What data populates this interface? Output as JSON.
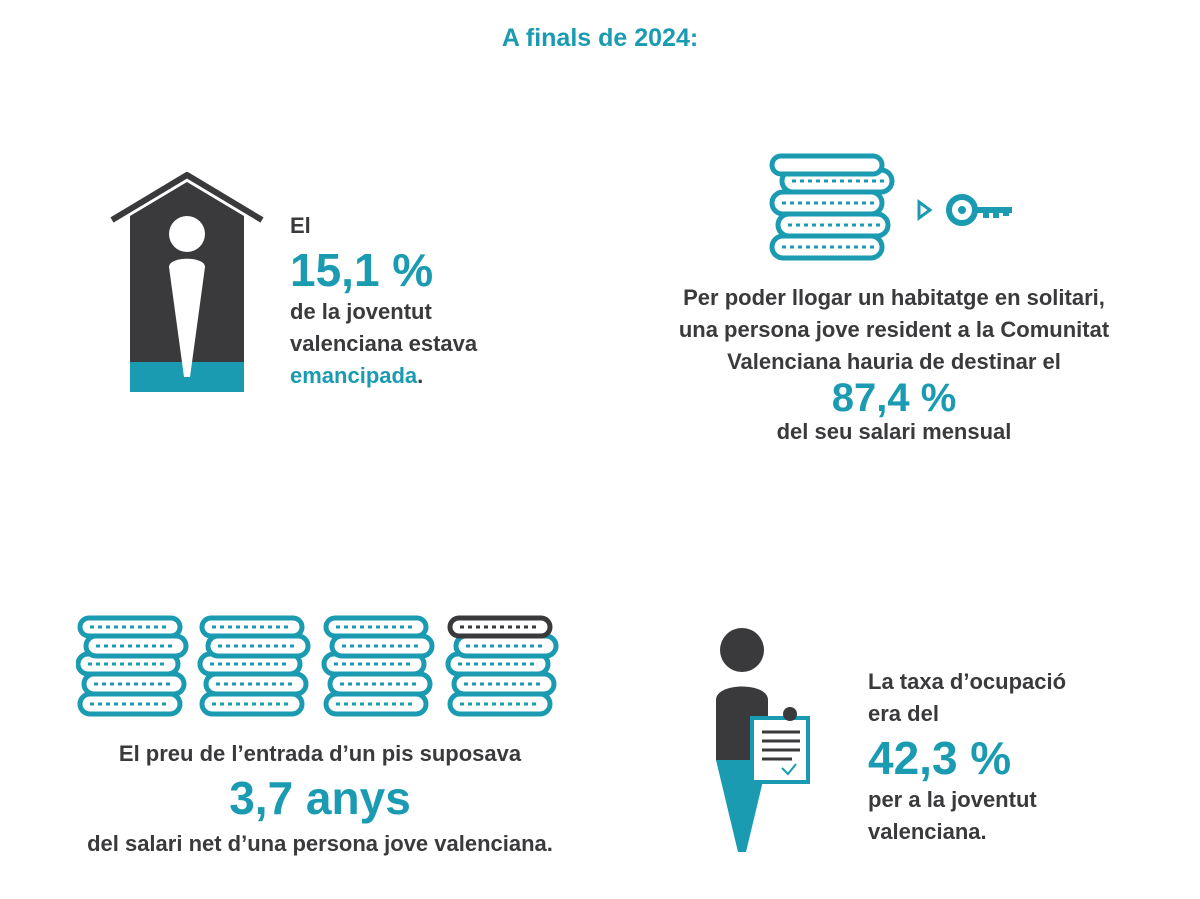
{
  "title": "A finals de 2024:",
  "emancipation": {
    "prefix": "El",
    "value": "15,1 %",
    "line1": "de la joventut",
    "line2": "valenciana estava",
    "highlight": "emancipada",
    "suffix": "."
  },
  "rent": {
    "line1": "Per poder llogar un habitatge en solitari,",
    "line2": "una persona jove resident a la Comunitat",
    "line3": "Valenciana hauria de destinar el",
    "value": "87,4 %",
    "line4": "del seu salari mensual"
  },
  "purchase": {
    "line1": "El preu de l’entrada d’un pis suposava",
    "value": "3,7 anys",
    "line2": "del salari net d’una persona jove valenciana."
  },
  "employment": {
    "line1": "La taxa d’ocupació",
    "line2": "era del",
    "value": "42,3 %",
    "line3": "per a la joventut",
    "line4": "valenciana."
  },
  "icons": {
    "house": "house-person-icon",
    "coins": "coin-stack-icon",
    "key": "key-icon",
    "worker": "person-clipboard-icon"
  },
  "colors": {
    "accent": "#1a9bb1",
    "dark": "#3a3a3c"
  }
}
